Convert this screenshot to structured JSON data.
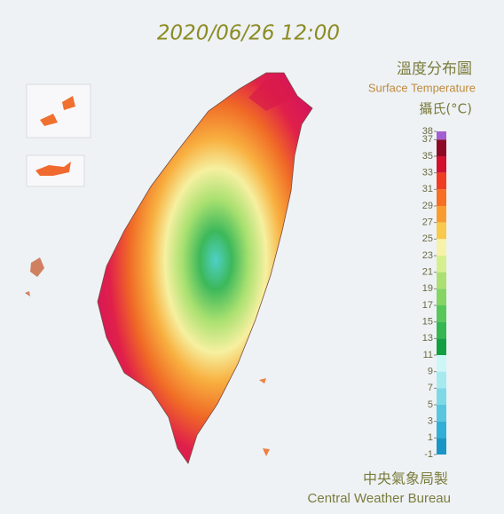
{
  "header": {
    "timestamp": "2020/06/26 12:00"
  },
  "legend": {
    "title_zh": "溫度分布圖",
    "title_en": "Surface Temperature",
    "unit": "攝氏(°C)",
    "ticks": [
      38,
      37,
      35,
      33,
      31,
      29,
      27,
      25,
      23,
      21,
      19,
      17,
      15,
      13,
      11,
      9,
      7,
      5,
      3,
      1,
      -1
    ],
    "colors": [
      "#a35fd0",
      "#8e0a24",
      "#d3102e",
      "#f03c22",
      "#f86e22",
      "#f99c30",
      "#f8c94a",
      "#f6f3a8",
      "#d6ef8e",
      "#ace070",
      "#84d562",
      "#58c75a",
      "#34b650",
      "#14a042",
      "#cdf6f6",
      "#a6eaf0",
      "#7ed9e6",
      "#58c6de",
      "#32afd6",
      "#1a96c6"
    ]
  },
  "footer": {
    "agency_zh": "中央氣象局製",
    "agency_en": "Central Weather Bureau"
  }
}
